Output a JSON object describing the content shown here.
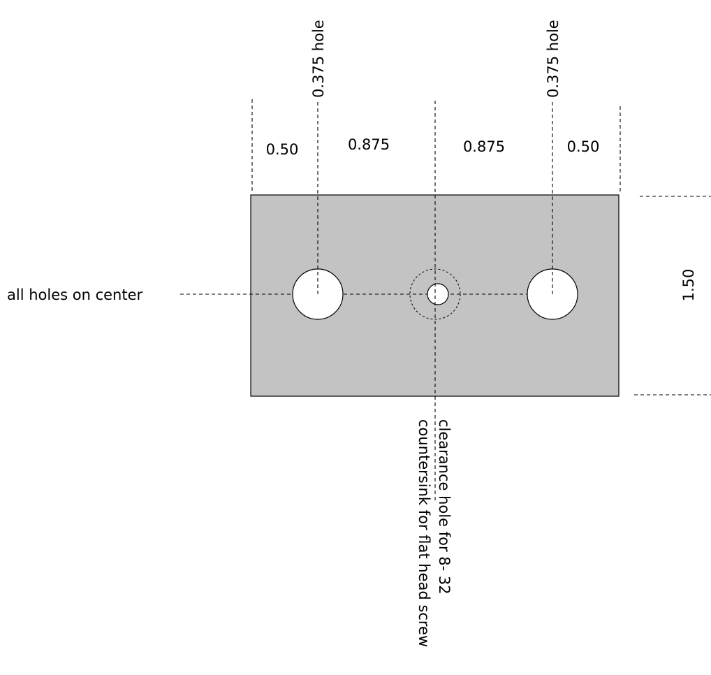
{
  "colors": {
    "plate_fill": "#c3c3c3",
    "hole_fill": "#ffffff",
    "line": "#000000",
    "background": "#ffffff"
  },
  "part": {
    "height_dim": "1.50"
  },
  "holes": {
    "left_label": "0.375 hole",
    "right_label": "0.375 hole",
    "center_line1": "clearance hole  for 8- 32",
    "center_line2": "countersink for flat head screw",
    "center_note": "all holes on center"
  },
  "dimensions": {
    "edge_left": "0.50",
    "span_left": "0.875",
    "span_right": "0.875",
    "edge_right": "0.50"
  }
}
